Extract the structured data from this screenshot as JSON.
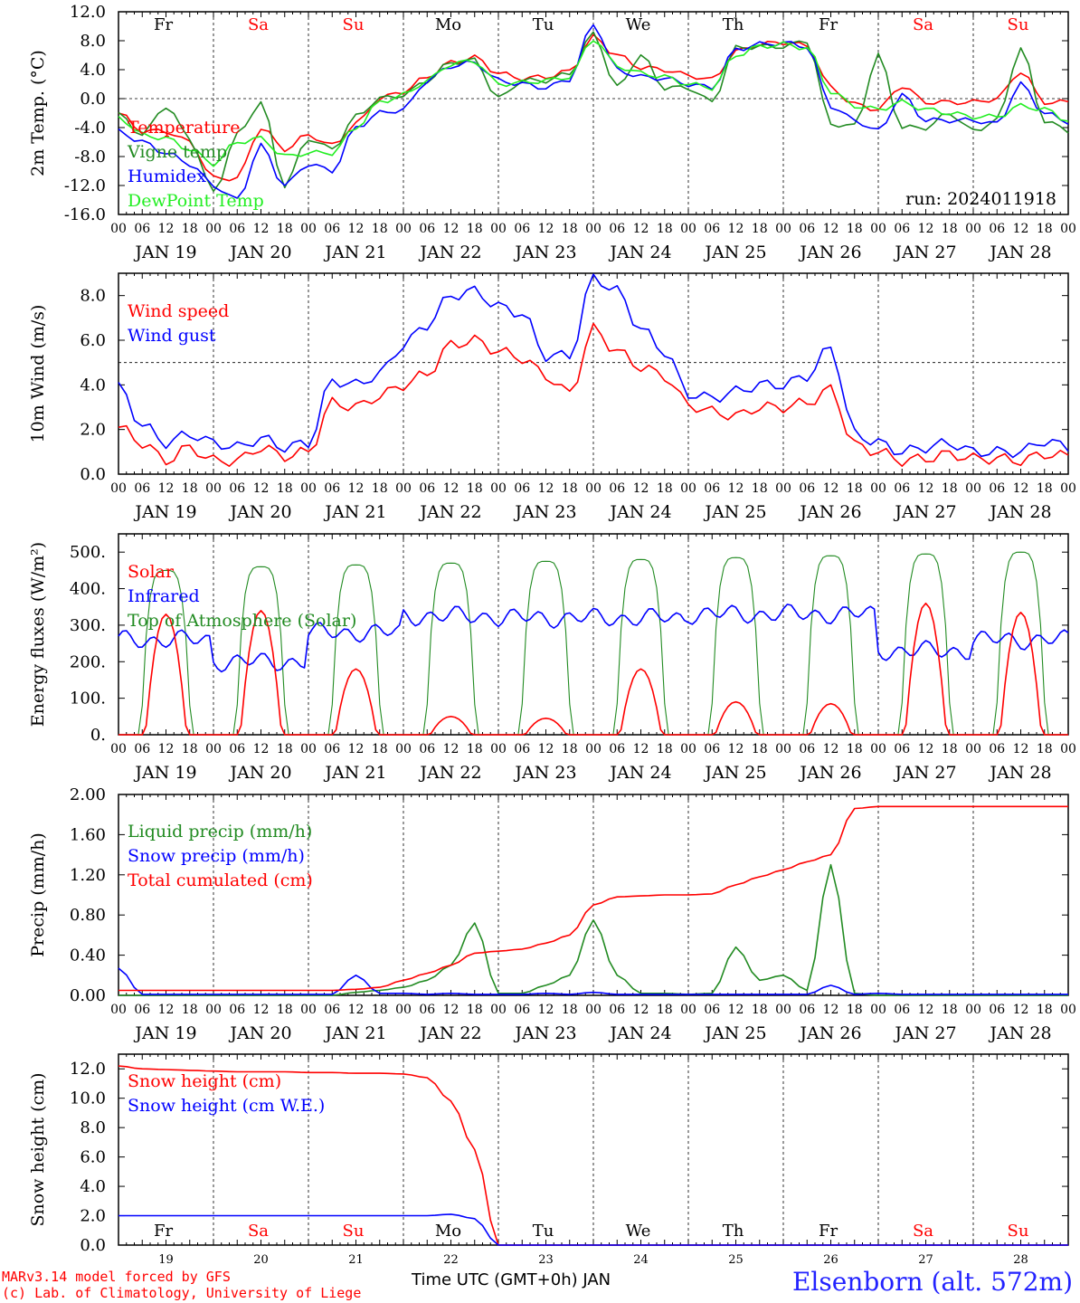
{
  "run_label": "run: 2024011918",
  "days_top": [
    "Fr",
    "Sa",
    "Su",
    "Mo",
    "Tu",
    "We",
    "Th",
    "Fr",
    "Sa",
    "Su"
  ],
  "day_colors": {
    "weekday": "#000000",
    "weekend": "#ff0000"
  },
  "weekend_flags": [
    false,
    true,
    true,
    false,
    false,
    false,
    false,
    false,
    true,
    true
  ],
  "date_labels": [
    "JAN 19",
    "JAN 20",
    "JAN 21",
    "JAN 22",
    "JAN 23",
    "JAN 24",
    "JAN 25",
    "JAN 26",
    "JAN 27",
    "JAN 28"
  ],
  "hour_ticks": [
    "00",
    "06",
    "12",
    "18"
  ],
  "bottom_day_numbers": [
    "19",
    "20",
    "21",
    "22",
    "23",
    "24",
    "25",
    "26",
    "27",
    "28"
  ],
  "footer": {
    "credit_line1": "MARv3.14 model forced by GFS",
    "credit_line2": "(c) Lab. of Climatology, University of Liege",
    "time_label": "Time UTC (GMT+0h) JAN",
    "station": "Elsenborn (alt. 572m)"
  },
  "chart_data": [
    {
      "type": "line",
      "ylabel": "2m Temp. (°C)",
      "ylim": [
        -16,
        12
      ],
      "yticks": [
        "12.0",
        "8.0",
        "4.0",
        "0.0",
        "-4.0",
        "-8.0",
        "-12.0",
        "-16.0"
      ],
      "ytick_values": [
        12,
        8,
        4,
        0,
        -4,
        -8,
        -12,
        -16
      ],
      "reference_line": 0,
      "x_hours": [
        0,
        6,
        12,
        18,
        24,
        30,
        36,
        42,
        48,
        54,
        60,
        66,
        72,
        78,
        84,
        90,
        96,
        102,
        108,
        114,
        120,
        126,
        132,
        138,
        144,
        150,
        156,
        162,
        168,
        174,
        180,
        186,
        192,
        198,
        204,
        210,
        216,
        222,
        228,
        234,
        240
      ],
      "series": [
        {
          "name": "Temperature",
          "color": "#ff0000",
          "values": [
            -2,
            -4.5,
            -4.5,
            -6,
            -11,
            -11,
            -4,
            -7,
            -5,
            -6.5,
            -3.5,
            0,
            1,
            3,
            5,
            5.7,
            3.5,
            2.8,
            3,
            3.8,
            8.5,
            6,
            4.3,
            4,
            3.2,
            2.6,
            6.5,
            7.5,
            7.8,
            7.3,
            1.5,
            -0.8,
            -1.5,
            1.8,
            -0.5,
            -0.5,
            -0.5,
            0,
            3.8,
            -0.5,
            -0.5
          ]
        },
        {
          "name": "Vigne temp",
          "color": "#228b22",
          "values": [
            -2.2,
            -5,
            -1,
            -5.5,
            -13,
            -5,
            -0.5,
            -12,
            -5.5,
            -7,
            -2.5,
            0,
            0.5,
            2.5,
            5,
            5.3,
            0,
            2.5,
            2.5,
            3.5,
            9,
            1.5,
            6,
            1.5,
            1.5,
            -0.5,
            7,
            7.2,
            7.2,
            8,
            -3.5,
            -3.8,
            6,
            -4,
            -4,
            -2,
            -4.5,
            -3,
            7,
            -3,
            -4.5
          ]
        },
        {
          "name": "Humidex",
          "color": "#0000ff",
          "values": [
            -4.5,
            -6,
            -7.5,
            -9,
            -12,
            -14,
            -6.5,
            -12,
            -9,
            -10,
            -4,
            -2,
            -1.5,
            2.5,
            4.5,
            5,
            2.5,
            2,
            1.5,
            2.7,
            10.3,
            4,
            3,
            2.8,
            2,
            1.5,
            6.8,
            7.5,
            7.7,
            7.2,
            -1,
            -3,
            -4.5,
            0.5,
            -3,
            -3,
            -3,
            -3.5,
            2,
            -2,
            -3.2
          ]
        },
        {
          "name": "DewPoint Temp",
          "color": "#22ee22",
          "values": [
            -2.5,
            -5,
            -5.5,
            -7,
            -9,
            -6,
            -5.5,
            -8,
            -7.5,
            -7.5,
            -4,
            -0.5,
            0.5,
            2.5,
            4.8,
            5.2,
            2,
            2.2,
            2.5,
            3,
            8.3,
            4.5,
            3.5,
            3,
            2,
            1.5,
            6,
            7.2,
            7.5,
            7,
            1,
            -1,
            -1.5,
            -0.5,
            -1.5,
            -2,
            -2.5,
            -2.5,
            -1,
            -1.5,
            -3
          ]
        }
      ]
    },
    {
      "type": "line",
      "ylabel": "10m Wind (m/s)",
      "ylim": [
        0,
        9
      ],
      "yticks": [
        "8.0",
        "6.0",
        "4.0",
        "2.0",
        "0.0"
      ],
      "ytick_values": [
        8,
        6,
        4,
        2,
        0
      ],
      "reference_line": 5,
      "x_hours": [
        0,
        6,
        12,
        18,
        24,
        30,
        36,
        42,
        48,
        54,
        60,
        66,
        72,
        78,
        84,
        90,
        96,
        102,
        108,
        114,
        120,
        126,
        132,
        138,
        144,
        150,
        156,
        162,
        168,
        174,
        180,
        186,
        192,
        198,
        204,
        210,
        216,
        222,
        228,
        234,
        240
      ],
      "series": [
        {
          "name": "Wind speed",
          "color": "#ff0000",
          "values": [
            2.1,
            1.4,
            0.6,
            1.2,
            0.6,
            0.6,
            1.2,
            0.8,
            1,
            3.2,
            3,
            3.5,
            4,
            4.5,
            5.8,
            6,
            5.5,
            5.2,
            4.4,
            3.6,
            6.5,
            5.5,
            4.8,
            4.4,
            3.1,
            2.8,
            2.6,
            3,
            3,
            3.2,
            3.8,
            1.3,
            1,
            0.6,
            0.7,
            0.9,
            0.7,
            0.7,
            0.6,
            0.9,
            0.8
          ]
        },
        {
          "name": "Wind gust",
          "color": "#0000ff",
          "values": [
            3.9,
            2.2,
            1.4,
            1.8,
            1.4,
            1.2,
            1.6,
            1.2,
            1.4,
            4.2,
            4,
            4.5,
            5.8,
            6.7,
            8,
            8.2,
            7.5,
            7.2,
            5.3,
            5.3,
            8.8,
            8.2,
            6.5,
            5.5,
            3.6,
            3.4,
            3.7,
            4,
            4,
            4.4,
            5.7,
            1.8,
            1.4,
            1,
            1.2,
            1.4,
            1,
            1,
            1,
            1.5,
            1.2
          ]
        }
      ]
    },
    {
      "type": "line",
      "ylabel": "Energy fluxes (W/m²)",
      "ylim": [
        0,
        550
      ],
      "yticks": [
        "500.",
        "400.",
        "300.",
        "200.",
        "100.",
        "0."
      ],
      "ytick_values": [
        500,
        400,
        300,
        200,
        100,
        0
      ],
      "day_peaks": {
        "solar": [
          330,
          340,
          180,
          50,
          45,
          180,
          90,
          85,
          360,
          335
        ],
        "toa": [
          450,
          460,
          465,
          470,
          475,
          480,
          485,
          490,
          495,
          500
        ],
        "infrared_day_level": [
          260,
          200,
          280,
          325,
          320,
          320,
          330,
          330,
          230,
          260
        ]
      },
      "series": [
        {
          "name": "Solar",
          "color": "#ff0000"
        },
        {
          "name": "Infrared",
          "color": "#0000ff"
        },
        {
          "name": "Top of Atmosphere (Solar)",
          "color": "#228b22"
        }
      ]
    },
    {
      "type": "line",
      "ylabel": "Precip (mm/h)",
      "ylim": [
        0,
        2
      ],
      "yticks": [
        "2.00",
        "1.60",
        "1.20",
        "0.80",
        "0.40",
        "0.00"
      ],
      "ytick_values": [
        2,
        1.6,
        1.2,
        0.8,
        0.4,
        0
      ],
      "x_hours": [
        0,
        6,
        12,
        18,
        24,
        30,
        36,
        42,
        48,
        54,
        60,
        66,
        72,
        78,
        84,
        90,
        96,
        102,
        108,
        114,
        120,
        126,
        132,
        138,
        144,
        150,
        156,
        162,
        168,
        174,
        180,
        186,
        192,
        198,
        204,
        210,
        216,
        222,
        228,
        234,
        240
      ],
      "series": [
        {
          "name": "Liquid precip (mm/h)",
          "color": "#228b22",
          "values": [
            0,
            0,
            0,
            0,
            0,
            0,
            0,
            0,
            0,
            0,
            0.03,
            0.05,
            0.08,
            0.15,
            0.3,
            0.72,
            0.02,
            0.02,
            0.1,
            0.2,
            0.75,
            0.2,
            0.02,
            0.02,
            0.01,
            0.02,
            0.48,
            0.15,
            0.2,
            0.05,
            1.3,
            0.02,
            0,
            0,
            0,
            0,
            0,
            0,
            0,
            0,
            0
          ]
        },
        {
          "name": "Snow precip (mm/h)",
          "color": "#0000ff",
          "values": [
            0.27,
            0.01,
            0.01,
            0.01,
            0.01,
            0.01,
            0.01,
            0.01,
            0.01,
            0.01,
            0.2,
            0.02,
            0.02,
            0.01,
            0.02,
            0.01,
            0.01,
            0.01,
            0.02,
            0.01,
            0.03,
            0.01,
            0.01,
            0.01,
            0.01,
            0.01,
            0.01,
            0.01,
            0.01,
            0.01,
            0.1,
            0.01,
            0.02,
            0.01,
            0.01,
            0.01,
            0.01,
            0.01,
            0.01,
            0.01,
            0.01
          ]
        },
        {
          "name": "Total cumulated (cm)",
          "color": "#ff0000",
          "values": [
            0.05,
            0.05,
            0.05,
            0.05,
            0.05,
            0.05,
            0.05,
            0.05,
            0.05,
            0.05,
            0.06,
            0.08,
            0.15,
            0.22,
            0.3,
            0.42,
            0.44,
            0.46,
            0.52,
            0.6,
            0.9,
            0.98,
            0.99,
            1,
            1,
            1.01,
            1.1,
            1.18,
            1.25,
            1.33,
            1.4,
            1.86,
            1.88,
            1.88,
            1.88,
            1.88,
            1.88,
            1.88,
            1.88,
            1.88,
            1.88
          ]
        }
      ]
    },
    {
      "type": "line",
      "ylabel": "Snow height (cm)",
      "ylim": [
        0,
        13
      ],
      "yticks": [
        "12.0",
        "10.0",
        "8.0",
        "6.0",
        "4.0",
        "2.0",
        "0.0"
      ],
      "ytick_values": [
        12,
        10,
        8,
        6,
        4,
        2,
        0
      ],
      "x_hours": [
        0,
        6,
        12,
        18,
        24,
        30,
        36,
        42,
        48,
        54,
        60,
        66,
        72,
        78,
        84,
        90,
        96,
        102,
        108,
        114,
        120,
        126,
        132,
        138,
        144,
        150,
        156,
        162,
        168,
        174,
        180,
        186,
        192,
        198,
        204,
        210,
        216,
        222,
        228,
        234,
        240
      ],
      "series": [
        {
          "name": "Snow height (cm)",
          "color": "#ff0000",
          "values": [
            12.2,
            12,
            11.95,
            11.9,
            11.85,
            11.8,
            11.8,
            11.8,
            11.75,
            11.75,
            11.7,
            11.7,
            11.65,
            11.4,
            9.8,
            6.5,
            0,
            0,
            0,
            0,
            0,
            0,
            0,
            0,
            0,
            0,
            0,
            0,
            0,
            0,
            0,
            0,
            0,
            0,
            0,
            0,
            0,
            0,
            0,
            0,
            0
          ]
        },
        {
          "name": "Snow height (cm W.E.)",
          "color": "#0000ff",
          "values": [
            2,
            2,
            2,
            2,
            2,
            2,
            2,
            2,
            2,
            2,
            2,
            2,
            2,
            2,
            2.1,
            1.8,
            0,
            0,
            0,
            0,
            0,
            0,
            0,
            0,
            0,
            0,
            0,
            0,
            0,
            0,
            0,
            0,
            0,
            0,
            0,
            0,
            0,
            0,
            0,
            0,
            0
          ]
        }
      ]
    }
  ]
}
